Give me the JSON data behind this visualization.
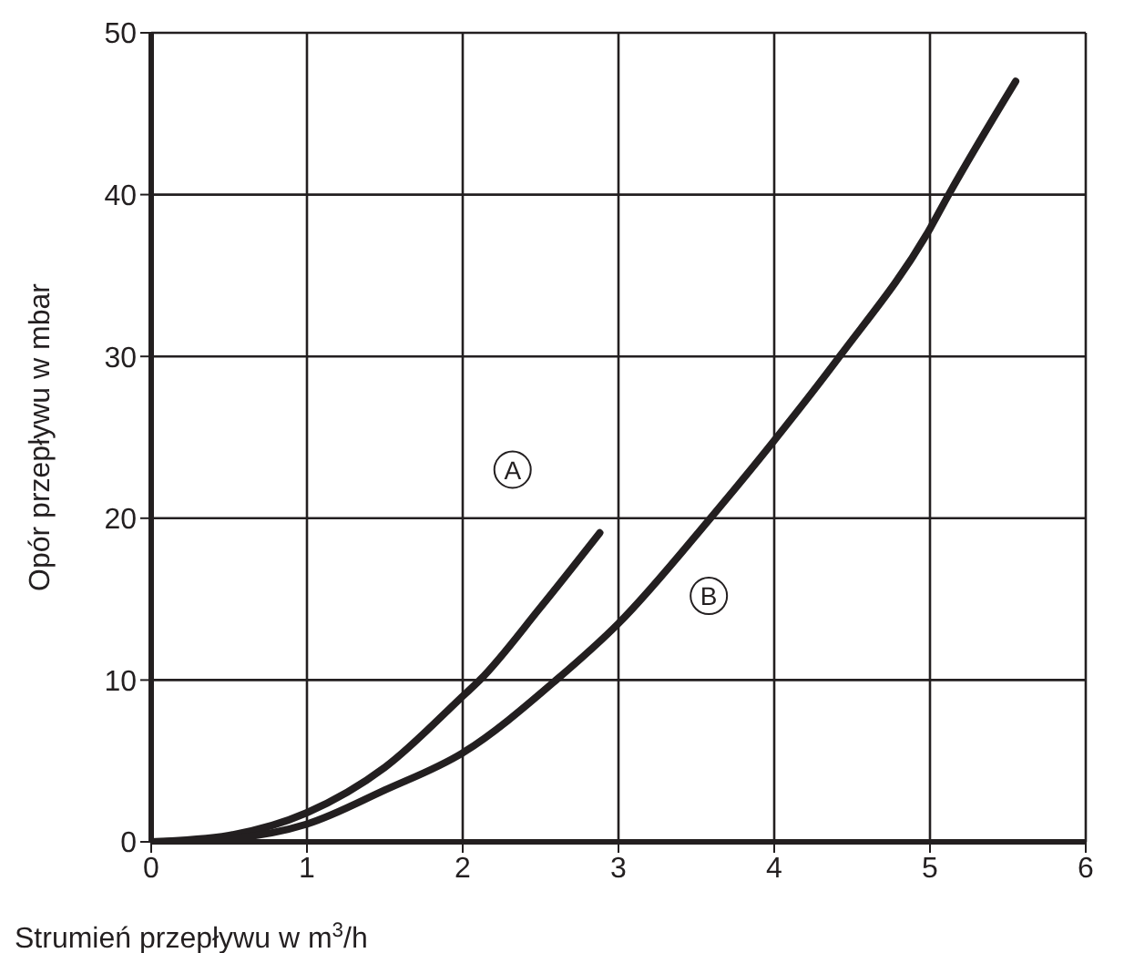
{
  "chart_data": {
    "type": "line",
    "xlabel": "Strumień przepływu w m$^{3}$/h",
    "ylabel": "Opór przepływu w mbar",
    "xlim": [
      0,
      6
    ],
    "xticks": [
      0,
      1,
      2,
      3,
      4,
      5,
      6
    ],
    "ylim": [
      0,
      50
    ],
    "yticks": [
      0,
      10,
      20,
      30,
      40,
      50
    ],
    "grid": true,
    "marker": "none",
    "line_style": "solid",
    "series": [
      {
        "color": "#231f20",
        "x": [
          0,
          0.5,
          1,
          1.5,
          2,
          2.11,
          2.5,
          2.88
        ],
        "values": [
          0,
          0.4,
          1.8,
          4.6,
          9.0,
          10,
          14.5,
          19.1
        ]
      },
      {
        "color": "#231f20",
        "x": [
          0,
          0.5,
          1,
          1.5,
          2,
          2.6,
          3,
          3.59,
          4,
          4.42,
          5,
          5.12,
          5.55
        ],
        "values": [
          0,
          0.2,
          1.1,
          3.2,
          5.5,
          10,
          13.5,
          20,
          24.8,
          30,
          37.9,
          40,
          47
        ]
      }
    ],
    "annotations": [
      {
        "text": "A",
        "x": 2.32,
        "y": 23
      },
      {
        "text": "B",
        "x": 3.58,
        "y": 15.2
      }
    ]
  }
}
